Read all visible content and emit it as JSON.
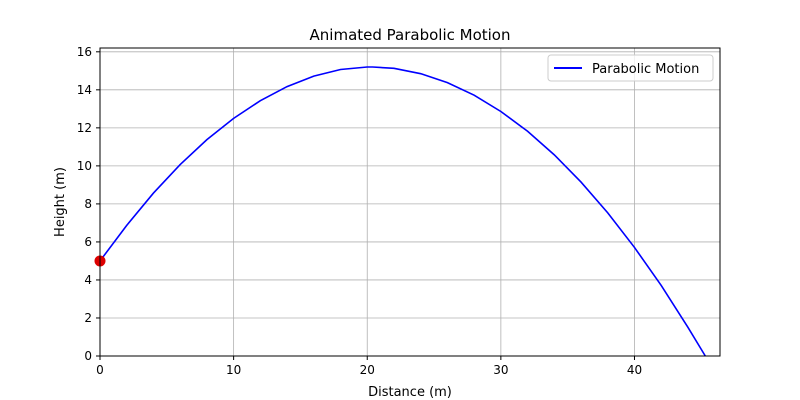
{
  "chart_data": {
    "type": "line",
    "title": "Animated Parabolic Motion",
    "xlabel": "Distance (m)",
    "ylabel": "Height (m)",
    "xlim": [
      0,
      46.4
    ],
    "ylim": [
      0,
      16.2
    ],
    "xticks": [
      0,
      10,
      20,
      30,
      40
    ],
    "yticks": [
      0,
      2,
      4,
      6,
      8,
      10,
      12,
      14,
      16
    ],
    "grid": true,
    "legend_position": "top-right",
    "series": [
      {
        "name": "Parabolic Motion",
        "color": "#0000ff",
        "x": [
          0,
          2,
          4,
          6,
          8,
          10,
          12,
          14,
          16,
          18,
          20,
          20.4,
          22,
          24,
          26,
          28,
          30,
          32,
          34,
          36,
          38,
          40,
          42,
          44,
          45.3
        ],
        "y": [
          5.0,
          6.87,
          8.57,
          10.07,
          11.38,
          12.5,
          13.43,
          14.17,
          14.72,
          15.07,
          15.2,
          15.2,
          15.13,
          14.85,
          14.38,
          13.72,
          12.86,
          11.82,
          10.58,
          9.15,
          7.53,
          5.71,
          3.71,
          1.51,
          0.0
        ]
      }
    ],
    "markers": [
      {
        "x": 0,
        "y": 5,
        "color": "#dd0000"
      }
    ]
  }
}
